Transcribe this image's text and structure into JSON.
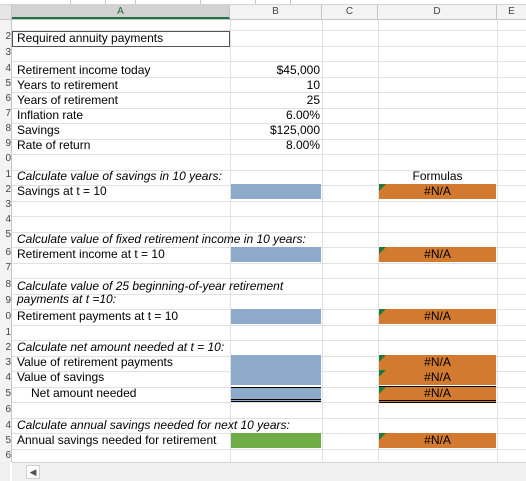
{
  "columns": [
    "A",
    "B",
    "C",
    "D",
    "E"
  ],
  "row_numbers": [
    "2",
    "3",
    "4",
    "5",
    "6",
    "7",
    "8",
    "9",
    "0",
    "1",
    "2",
    "3",
    "4",
    "5",
    "6",
    "7",
    "8",
    "9",
    "0",
    "1",
    "2",
    "3",
    "4",
    "5",
    "6"
  ],
  "title": "Required annuity payments",
  "inputs": [
    {
      "label": "Retirement income today",
      "value": "$45,000"
    },
    {
      "label": "Years to retirement",
      "value": "10"
    },
    {
      "label": "Years of retirement",
      "value": "25"
    },
    {
      "label": "Inflation rate",
      "value": "6.00%"
    },
    {
      "label": "Savings",
      "value": "$125,000"
    },
    {
      "label": "Rate of return",
      "value": "8.00%"
    }
  ],
  "formulas_header": "Formulas",
  "na": "#N/A",
  "sections": {
    "s1_head": "Calculate value of savings in 10 years:",
    "s1_row": "Savings at t = 10",
    "s2_head": "Calculate value of fixed retirement income in 10 years:",
    "s2_row": "Retirement income at t = 10",
    "s3_head_l1": "Calculate value of 25 beginning-of-year retirement",
    "s3_head_l2": "payments at t =10:",
    "s3_row": "Retirement payments at t = 10",
    "s4_head": "Calculate net amount needed at t = 10:",
    "s4_row1": "Value of retirement payments",
    "s4_row2": "Value of savings",
    "s4_row3": "Net amount needed",
    "s5_head": "Calculate annual savings needed for next 10 years:",
    "s5_row": "Annual savings needed for retirement"
  },
  "colors": {
    "blue": "#8eaacb",
    "green": "#70ad47",
    "orange": "#d27a30",
    "flag": "#1f7b3c"
  }
}
